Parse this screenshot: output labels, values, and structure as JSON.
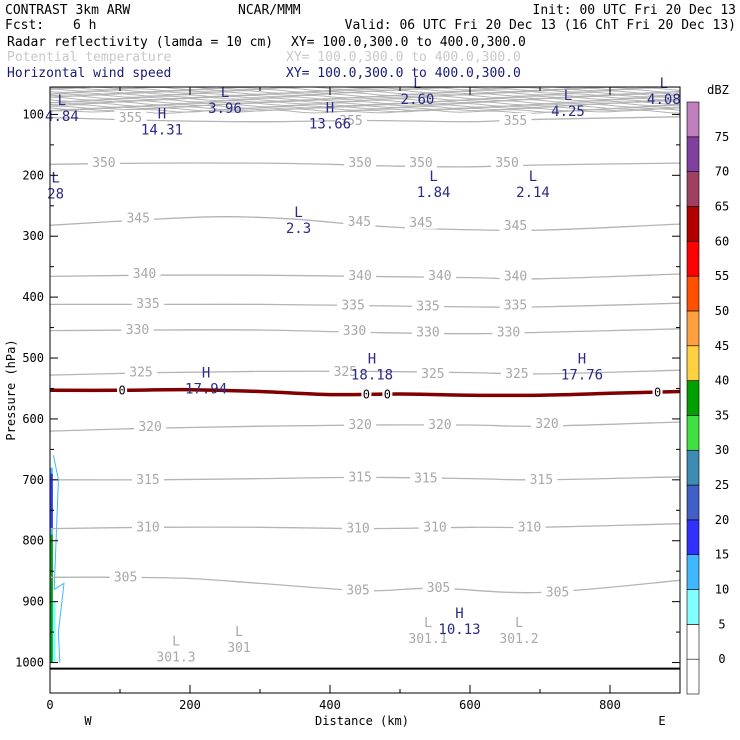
{
  "header": {
    "model": "CONTRAST  3km ARW",
    "center": "NCAR/MMM",
    "init": "Init: 00 UTC Fri 20 Dec 13",
    "fcst_label": "Fcst:",
    "fcst_value": "6 h",
    "valid": "Valid: 06 UTC Fri 20 Dec 13 (16 ChT Fri 20 Dec 13)",
    "fields": [
      {
        "name": "Radar reflectivity (lamda = 10 cm)",
        "xy": "XY= 100.0,300.0 to 400.0,300.0",
        "color": "#000000"
      },
      {
        "name": "Potential temperature",
        "xy": "XY= 100.0,300.0 to 400.0,300.0",
        "color": "#c8c8c8"
      },
      {
        "name": "Horizontal wind speed",
        "xy": "XY= 100.0,300.0 to 400.0,300.0",
        "color": "#1a1a78"
      }
    ]
  },
  "chart_data": {
    "type": "contour",
    "xlabel": "Distance (km)",
    "ylabel": "Pressure (hPa)",
    "xlim": [
      0,
      900
    ],
    "ylim": [
      1050,
      55
    ],
    "x_ticks": [
      0,
      200,
      400,
      600,
      800
    ],
    "y_ticks": [
      100,
      200,
      300,
      400,
      500,
      600,
      700,
      800,
      900,
      1000
    ],
    "x_end_labels": {
      "left": "W",
      "right": "E"
    },
    "theta_contours": [
      {
        "value": 355,
        "points": [
          [
            0,
            105
          ],
          [
            150,
            110
          ],
          [
            300,
            112
          ],
          [
            450,
            110
          ],
          [
            600,
            112
          ],
          [
            700,
            108
          ],
          [
            900,
            104
          ]
        ],
        "labels": [
          [
            115,
            106
          ],
          [
            430,
            111
          ],
          [
            665,
            111
          ]
        ]
      },
      {
        "value": 350,
        "points": [
          [
            0,
            182
          ],
          [
            150,
            180
          ],
          [
            300,
            180
          ],
          [
            400,
            182
          ],
          [
            500,
            185
          ],
          [
            600,
            186
          ],
          [
            700,
            183
          ],
          [
            900,
            180
          ]
        ],
        "labels": [
          [
            77,
            180
          ],
          [
            443,
            180
          ],
          [
            530,
            180
          ],
          [
            653,
            180
          ]
        ]
      },
      {
        "value": 345,
        "points": [
          [
            0,
            282
          ],
          [
            150,
            272
          ],
          [
            250,
            268
          ],
          [
            350,
            272
          ],
          [
            450,
            282
          ],
          [
            550,
            288
          ],
          [
            700,
            290
          ],
          [
            900,
            280
          ]
        ],
        "labels": [
          [
            126,
            271
          ],
          [
            442,
            277
          ],
          [
            530,
            278
          ],
          [
            665,
            283
          ]
        ]
      },
      {
        "value": 340,
        "points": [
          [
            0,
            366
          ],
          [
            150,
            364
          ],
          [
            300,
            364
          ],
          [
            450,
            366
          ],
          [
            600,
            368
          ],
          [
            700,
            370
          ],
          [
            900,
            362
          ]
        ],
        "labels": [
          [
            135,
            362
          ],
          [
            443,
            365
          ],
          [
            557,
            365
          ],
          [
            665,
            366
          ]
        ]
      },
      {
        "value": 335,
        "points": [
          [
            0,
            412
          ],
          [
            150,
            412
          ],
          [
            300,
            412
          ],
          [
            450,
            414
          ],
          [
            600,
            416
          ],
          [
            700,
            416
          ],
          [
            900,
            410
          ]
        ],
        "labels": [
          [
            140,
            411
          ],
          [
            433,
            414
          ],
          [
            540,
            415
          ],
          [
            665,
            414
          ]
        ]
      },
      {
        "value": 330,
        "points": [
          [
            0,
            455
          ],
          [
            150,
            454
          ],
          [
            300,
            454
          ],
          [
            450,
            458
          ],
          [
            600,
            460
          ],
          [
            700,
            458
          ],
          [
            900,
            452
          ]
        ],
        "labels": [
          [
            125,
            454
          ],
          [
            435,
            456
          ],
          [
            540,
            458
          ],
          [
            655,
            458
          ]
        ]
      },
      {
        "value": 325,
        "points": [
          [
            0,
            528
          ],
          [
            150,
            524
          ],
          [
            300,
            522
          ],
          [
            450,
            522
          ],
          [
            600,
            524
          ],
          [
            700,
            526
          ],
          [
            900,
            520
          ]
        ],
        "labels": [
          [
            130,
            524
          ],
          [
            422,
            523
          ],
          [
            547,
            526
          ],
          [
            667,
            526
          ]
        ]
      },
      {
        "value": 320,
        "points": [
          [
            0,
            620
          ],
          [
            150,
            615
          ],
          [
            300,
            612
          ],
          [
            450,
            610
          ],
          [
            600,
            610
          ],
          [
            700,
            612
          ],
          [
            900,
            605
          ]
        ],
        "labels": [
          [
            143,
            613
          ],
          [
            443,
            610
          ],
          [
            557,
            610
          ],
          [
            710,
            608
          ]
        ]
      },
      {
        "value": 315,
        "points": [
          [
            0,
            700
          ],
          [
            150,
            700
          ],
          [
            300,
            698
          ],
          [
            450,
            696
          ],
          [
            600,
            698
          ],
          [
            700,
            700
          ],
          [
            900,
            695
          ]
        ],
        "labels": [
          [
            140,
            700
          ],
          [
            443,
            696
          ],
          [
            537,
            698
          ],
          [
            702,
            700
          ]
        ]
      },
      {
        "value": 310,
        "points": [
          [
            0,
            780
          ],
          [
            150,
            778
          ],
          [
            300,
            778
          ],
          [
            450,
            780
          ],
          [
            600,
            778
          ],
          [
            700,
            778
          ],
          [
            900,
            772
          ]
        ],
        "labels": [
          [
            140,
            778
          ],
          [
            440,
            780
          ],
          [
            550,
            778
          ],
          [
            685,
            778
          ]
        ]
      },
      {
        "value": 305,
        "points": [
          [
            0,
            860
          ],
          [
            100,
            860
          ],
          [
            200,
            862
          ],
          [
            300,
            870
          ],
          [
            450,
            882
          ],
          [
            550,
            878
          ],
          [
            700,
            885
          ],
          [
            900,
            865
          ]
        ],
        "labels": [
          [
            108,
            860
          ],
          [
            440,
            882
          ],
          [
            555,
            878
          ],
          [
            725,
            885
          ]
        ]
      }
    ],
    "theta_extrema": [
      {
        "type": "L",
        "value": "301.3",
        "x": 180,
        "p": 975
      },
      {
        "type": "L",
        "value": "301",
        "x": 270,
        "p": 960
      },
      {
        "type": "L",
        "value": "301.1",
        "x": 540,
        "p": 945
      },
      {
        "type": "L",
        "value": "301.2",
        "x": 670,
        "p": 945
      }
    ],
    "wind_extrema": [
      {
        "type": "L",
        "value": "4.84",
        "x": 17,
        "p": 88
      },
      {
        "type": "L",
        "value": "3.96",
        "x": 250,
        "p": 75
      },
      {
        "type": "H",
        "value": "14.31",
        "x": 160,
        "p": 110
      },
      {
        "type": "H",
        "value": "13.66",
        "x": 400,
        "p": 100
      },
      {
        "type": "L",
        "value": "2.60",
        "x": 525,
        "p": 60
      },
      {
        "type": "L",
        "value": "4.25",
        "x": 740,
        "p": 80
      },
      {
        "type": "L",
        "value": "4.08",
        "x": 877,
        "p": 60
      },
      {
        "type": "L",
        "value": "28",
        "x": 8,
        "p": 215
      },
      {
        "type": "L",
        "value": "1.84",
        "x": 548,
        "p": 213
      },
      {
        "type": "L",
        "value": "2.14",
        "x": 690,
        "p": 213
      },
      {
        "type": "L",
        "value": "2.3",
        "x": 355,
        "p": 272
      },
      {
        "type": "H",
        "value": "18.18",
        "x": 460,
        "p": 512
      },
      {
        "type": "H",
        "value": "17.94",
        "x": 223,
        "p": 535
      },
      {
        "type": "H",
        "value": "17.76",
        "x": 760,
        "p": 512
      },
      {
        "type": "H",
        "value": "10.13",
        "x": 585,
        "p": 930
      }
    ],
    "zero_contour": {
      "value": "0",
      "color": "#800000",
      "points": [
        [
          0,
          553
        ],
        [
          100,
          553
        ],
        [
          200,
          552
        ],
        [
          300,
          555
        ],
        [
          400,
          560
        ],
        [
          500,
          559
        ],
        [
          600,
          561
        ],
        [
          700,
          561
        ],
        [
          800,
          558
        ],
        [
          900,
          555
        ]
      ],
      "labels": [
        [
          103,
          553
        ],
        [
          452,
          560
        ],
        [
          482,
          560
        ],
        [
          868,
          557
        ]
      ]
    },
    "reflectivity": {
      "units": "dBZ",
      "colorbar": [
        {
          "lo": -5,
          "hi": 0,
          "color": "#ffffff"
        },
        {
          "lo": 0,
          "hi": 5,
          "color": "#ffffff"
        },
        {
          "lo": 5,
          "hi": 10,
          "color": "#80ffff"
        },
        {
          "lo": 10,
          "hi": 15,
          "color": "#40b8ff"
        },
        {
          "lo": 15,
          "hi": 20,
          "color": "#3030ff"
        },
        {
          "lo": 20,
          "hi": 25,
          "color": "#4060c8"
        },
        {
          "lo": 25,
          "hi": 30,
          "color": "#3c8cb4"
        },
        {
          "lo": 30,
          "hi": 35,
          "color": "#40e040"
        },
        {
          "lo": 35,
          "hi": 40,
          "color": "#00a000"
        },
        {
          "lo": 40,
          "hi": 45,
          "color": "#ffd040"
        },
        {
          "lo": 45,
          "hi": 50,
          "color": "#ffa040"
        },
        {
          "lo": 50,
          "hi": 55,
          "color": "#ff5000"
        },
        {
          "lo": 55,
          "hi": 60,
          "color": "#ff0000"
        },
        {
          "lo": 60,
          "hi": 65,
          "color": "#b00000"
        },
        {
          "lo": 65,
          "hi": 70,
          "color": "#a04060"
        },
        {
          "lo": 70,
          "hi": 75,
          "color": "#8040a0"
        },
        {
          "lo": 75,
          "hi": 80,
          "color": "#c080c0"
        }
      ],
      "colorbar_ticks": [
        0,
        5,
        10,
        15,
        20,
        25,
        30,
        35,
        40,
        45,
        50,
        55,
        60,
        65,
        70,
        75
      ],
      "echo": [
        {
          "x0": 0,
          "x1": 4,
          "p0": 680,
          "p1": 1000,
          "color": "#40b8ff"
        },
        {
          "x0": 1,
          "x1": 4,
          "p0": 690,
          "p1": 780,
          "color": "#3030ff"
        },
        {
          "x0": 1,
          "x1": 4,
          "p0": 790,
          "p1": 1000,
          "color": "#00a000"
        },
        {
          "x0": 4,
          "x1": 8,
          "p0": 900,
          "p1": 1000,
          "color": "#80ffff"
        }
      ]
    },
    "ground_p": 1010,
    "top_noise_p": [
      55,
      100
    ]
  }
}
